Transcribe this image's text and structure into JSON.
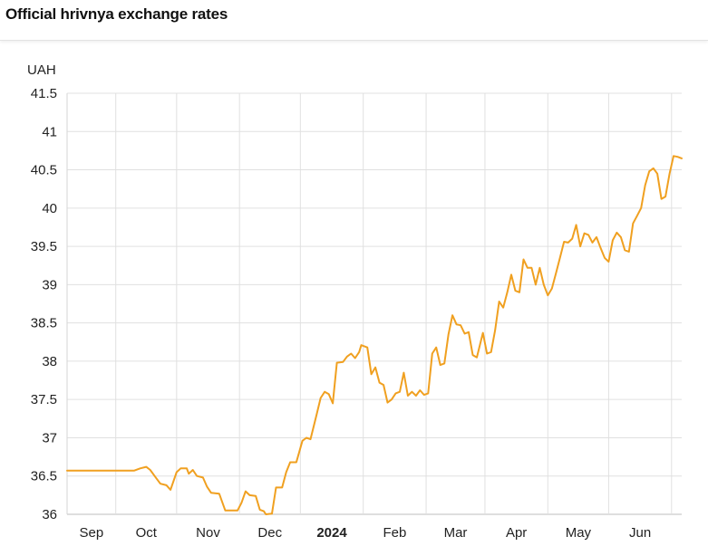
{
  "header": {
    "title": "Official hrivnya exchange rates"
  },
  "chart_data": {
    "type": "line",
    "title": "Official hrivnya exchange rates",
    "ylabel": "UAH",
    "xlabel": "",
    "ylim": [
      36,
      41.5
    ],
    "y_ticks": [
      "36",
      "36.5",
      "37",
      "37.5",
      "38",
      "38.5",
      "39",
      "39.5",
      "40",
      "40.5",
      "41",
      "41.5"
    ],
    "x_range": [
      "2023-08-08",
      "2024-06-06"
    ],
    "x_ticks": [
      {
        "label": "Sep",
        "date": "2023-09-01",
        "bold": false
      },
      {
        "label": "Oct",
        "date": "2023-10-01",
        "bold": false
      },
      {
        "label": "Nov",
        "date": "2023-11-01",
        "bold": false
      },
      {
        "label": "Dec",
        "date": "2023-12-01",
        "bold": false
      },
      {
        "label": "2024",
        "date": "2024-01-01",
        "bold": true
      },
      {
        "label": "Feb",
        "date": "2024-02-01",
        "bold": false
      },
      {
        "label": "Mar",
        "date": "2024-03-01",
        "bold": false
      },
      {
        "label": "Apr",
        "date": "2024-04-01",
        "bold": false
      },
      {
        "label": "May",
        "date": "2024-05-01",
        "bold": false
      },
      {
        "label": "Jun",
        "date": "2024-06-01",
        "bold": false
      }
    ],
    "grid": true,
    "line_color": "#f0a020",
    "series": [
      {
        "values": [
          [
            "2023-08-08",
            36.57
          ],
          [
            "2023-09-10",
            36.57
          ],
          [
            "2023-09-13",
            36.6
          ],
          [
            "2023-09-16",
            36.62
          ],
          [
            "2023-09-18",
            36.58
          ],
          [
            "2023-09-21",
            36.47
          ],
          [
            "2023-09-23",
            36.4
          ],
          [
            "2023-09-26",
            36.38
          ],
          [
            "2023-09-28",
            36.32
          ],
          [
            "2023-10-01",
            36.55
          ],
          [
            "2023-10-03",
            36.6
          ],
          [
            "2023-10-06",
            36.6
          ],
          [
            "2023-10-07",
            36.53
          ],
          [
            "2023-10-09",
            36.58
          ],
          [
            "2023-10-11",
            36.5
          ],
          [
            "2023-10-14",
            36.48
          ],
          [
            "2023-10-16",
            36.36
          ],
          [
            "2023-10-18",
            36.28
          ],
          [
            "2023-10-22",
            36.27
          ],
          [
            "2023-10-25",
            36.05
          ],
          [
            "2023-10-28",
            36.05
          ],
          [
            "2023-10-31",
            36.05
          ],
          [
            "2023-11-02",
            36.15
          ],
          [
            "2023-11-04",
            36.3
          ],
          [
            "2023-11-06",
            36.25
          ],
          [
            "2023-11-09",
            36.24
          ],
          [
            "2023-11-11",
            36.06
          ],
          [
            "2023-11-13",
            36.04
          ],
          [
            "2023-11-14",
            36.0
          ],
          [
            "2023-11-17",
            36.01
          ],
          [
            "2023-11-19",
            36.35
          ],
          [
            "2023-11-22",
            36.35
          ],
          [
            "2023-11-24",
            36.55
          ],
          [
            "2023-11-26",
            36.68
          ],
          [
            "2023-11-29",
            36.68
          ],
          [
            "2023-12-02",
            36.96
          ],
          [
            "2023-12-04",
            37.0
          ],
          [
            "2023-12-06",
            36.98
          ],
          [
            "2023-12-09",
            37.3
          ],
          [
            "2023-12-11",
            37.52
          ],
          [
            "2023-12-13",
            37.6
          ],
          [
            "2023-12-15",
            37.57
          ],
          [
            "2023-12-17",
            37.45
          ],
          [
            "2023-12-19",
            37.98
          ],
          [
            "2023-12-22",
            37.99
          ],
          [
            "2023-12-24",
            38.06
          ],
          [
            "2023-12-26",
            38.1
          ],
          [
            "2023-12-28",
            38.04
          ],
          [
            "2023-12-30",
            38.12
          ],
          [
            "2023-12-31",
            38.21
          ],
          [
            "2024-01-03",
            38.18
          ],
          [
            "2024-01-05",
            37.83
          ],
          [
            "2024-01-07",
            37.92
          ],
          [
            "2024-01-09",
            37.72
          ],
          [
            "2024-01-11",
            37.69
          ],
          [
            "2024-01-13",
            37.46
          ],
          [
            "2024-01-15",
            37.5
          ],
          [
            "2024-01-17",
            37.58
          ],
          [
            "2024-01-19",
            37.6
          ],
          [
            "2024-01-21",
            37.85
          ],
          [
            "2024-01-23",
            37.55
          ],
          [
            "2024-01-25",
            37.6
          ],
          [
            "2024-01-27",
            37.55
          ],
          [
            "2024-01-29",
            37.62
          ],
          [
            "2024-01-31",
            37.56
          ],
          [
            "2024-02-02",
            37.58
          ],
          [
            "2024-02-04",
            38.1
          ],
          [
            "2024-02-06",
            38.18
          ],
          [
            "2024-02-08",
            37.95
          ],
          [
            "2024-02-10",
            37.97
          ],
          [
            "2024-02-12",
            38.35
          ],
          [
            "2024-02-14",
            38.6
          ],
          [
            "2024-02-16",
            38.48
          ],
          [
            "2024-02-18",
            38.47
          ],
          [
            "2024-02-20",
            38.36
          ],
          [
            "2024-02-22",
            38.38
          ],
          [
            "2024-02-24",
            38.08
          ],
          [
            "2024-02-26",
            38.05
          ],
          [
            "2024-02-29",
            38.37
          ],
          [
            "2024-03-02",
            38.1
          ],
          [
            "2024-03-04",
            38.12
          ],
          [
            "2024-03-06",
            38.4
          ],
          [
            "2024-03-08",
            38.78
          ],
          [
            "2024-03-10",
            38.7
          ],
          [
            "2024-03-12",
            38.9
          ],
          [
            "2024-03-14",
            39.13
          ],
          [
            "2024-03-16",
            38.92
          ],
          [
            "2024-03-18",
            38.9
          ],
          [
            "2024-03-20",
            39.33
          ],
          [
            "2024-03-22",
            39.22
          ],
          [
            "2024-03-24",
            39.22
          ],
          [
            "2024-03-26",
            39.0
          ],
          [
            "2024-03-28",
            39.22
          ],
          [
            "2024-03-30",
            39.0
          ],
          [
            "2024-04-01",
            38.86
          ],
          [
            "2024-04-03",
            38.95
          ],
          [
            "2024-04-05",
            39.15
          ],
          [
            "2024-04-07",
            39.35
          ],
          [
            "2024-04-09",
            39.56
          ],
          [
            "2024-04-11",
            39.55
          ],
          [
            "2024-04-13",
            39.6
          ],
          [
            "2024-04-15",
            39.78
          ],
          [
            "2024-04-17",
            39.5
          ],
          [
            "2024-04-19",
            39.67
          ],
          [
            "2024-04-21",
            39.65
          ],
          [
            "2024-04-23",
            39.55
          ],
          [
            "2024-04-25",
            39.62
          ],
          [
            "2024-04-27",
            39.48
          ],
          [
            "2024-04-29",
            39.35
          ],
          [
            "2024-05-01",
            39.3
          ],
          [
            "2024-05-03",
            39.58
          ],
          [
            "2024-05-05",
            39.68
          ],
          [
            "2024-05-07",
            39.62
          ],
          [
            "2024-05-09",
            39.45
          ],
          [
            "2024-05-11",
            39.43
          ],
          [
            "2024-05-13",
            39.8
          ],
          [
            "2024-05-15",
            39.9
          ],
          [
            "2024-05-17",
            40.0
          ],
          [
            "2024-05-19",
            40.3
          ],
          [
            "2024-05-21",
            40.48
          ],
          [
            "2024-05-23",
            40.52
          ],
          [
            "2024-05-25",
            40.45
          ],
          [
            "2024-05-27",
            40.12
          ],
          [
            "2024-05-29",
            40.15
          ],
          [
            "2024-05-31",
            40.45
          ],
          [
            "2024-06-02",
            40.68
          ],
          [
            "2024-06-04",
            40.67
          ],
          [
            "2024-06-06",
            40.65
          ]
        ]
      }
    ]
  }
}
